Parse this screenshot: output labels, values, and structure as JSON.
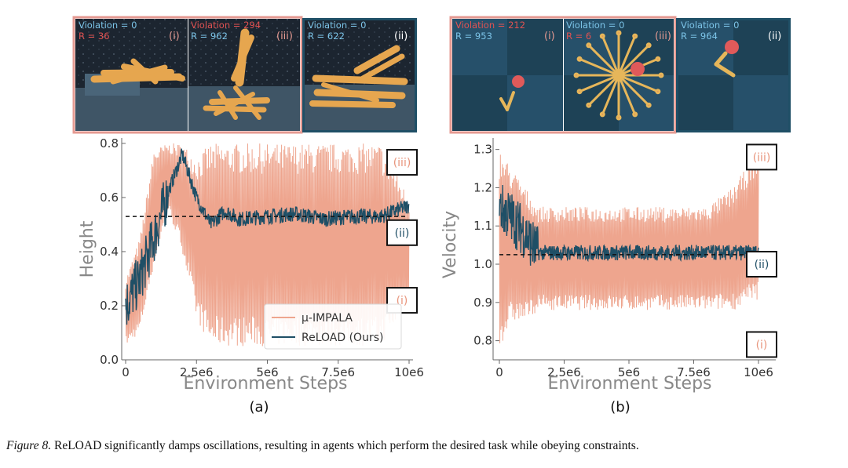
{
  "panels": [
    {
      "label": "(a)",
      "xlabel": "Environment Steps",
      "ylabel": "Height",
      "x_ticks": [
        "0",
        "2.5e6",
        "5e6",
        "7.5e6",
        "10e6"
      ],
      "y_ticks": [
        "0.0",
        "0.2",
        "0.4",
        "0.6",
        "0.8"
      ],
      "reference_value": 0.53,
      "markers": [
        {
          "label": "(iii)",
          "value": 0.73,
          "color": "#e8957c"
        },
        {
          "label": "(ii)",
          "value": 0.47,
          "color": "#1f4f66"
        },
        {
          "label": "(i)",
          "value": 0.22,
          "color": "#e8957c"
        }
      ],
      "thumbnails": [
        {
          "violation": "Violation = 0",
          "reward": "R = 36",
          "tag": "(i)",
          "border": "#e59a92"
        },
        {
          "violation": "Violation = 294",
          "reward": "R = 962",
          "tag": "(iii)",
          "border": "#e59a92"
        },
        {
          "violation": "Violation = 0",
          "reward": "R = 622",
          "tag": "(ii)",
          "border": "#1f4f66"
        }
      ]
    },
    {
      "label": "(b)",
      "xlabel": "Environment Steps",
      "ylabel": "Velocity",
      "x_ticks": [
        "0",
        "2.5e6",
        "5e6",
        "7.5e6",
        "10e6"
      ],
      "y_ticks": [
        "0.8",
        "0.9",
        "1.0",
        "1.1",
        "1.2",
        "1.3"
      ],
      "reference_value": 1.025,
      "markers": [
        {
          "label": "(iii)",
          "value": 1.28,
          "color": "#e8957c"
        },
        {
          "label": "(ii)",
          "value": 1.0,
          "color": "#1f4f66"
        },
        {
          "label": "(i)",
          "value": 0.79,
          "color": "#e8957c"
        }
      ],
      "thumbnails": [
        {
          "violation": "Violation = 212",
          "reward": "R = 953",
          "tag": "(i)",
          "border": "#e59a92"
        },
        {
          "violation": "Violation = 0",
          "reward": "R = 6",
          "tag": "(iii)",
          "border": "#e59a92"
        },
        {
          "violation": "Violation = 0",
          "reward": "R = 964",
          "tag": "(ii)",
          "border": "#1f4f66"
        }
      ]
    }
  ],
  "legend": {
    "series_1": "μ-IMPALA",
    "series_2": "ReLOAD (Ours)"
  },
  "colors": {
    "impala": "#eea58e",
    "reload": "#1f4f66",
    "reference_line": "#111111",
    "violation_text": "#e05252",
    "ok_text": "#7cc4e8"
  },
  "caption": {
    "lead": "Figure 8.",
    "text": " ReLOAD significantly damps oscillations, resulting in agents which perform the desired task while obeying constraints."
  },
  "chart_data": [
    {
      "type": "line",
      "title": "",
      "xlabel": "Environment Steps",
      "ylabel": "Height",
      "xlim": [
        0,
        10000000
      ],
      "ylim": [
        0.0,
        0.82
      ],
      "grid": false,
      "legend_position": "bottom-right",
      "reference_line": 0.53,
      "series": [
        {
          "name": "μ-IMPALA",
          "x": [
            0,
            500000,
            1000000,
            1500000,
            2000000,
            2500000,
            3000000,
            3500000,
            4000000,
            5000000,
            6000000,
            7000000,
            8000000,
            9000000,
            10000000
          ],
          "y_low": [
            0.05,
            0.1,
            0.35,
            0.55,
            0.4,
            0.15,
            0.05,
            0.05,
            0.05,
            0.05,
            0.05,
            0.05,
            0.05,
            0.05,
            0.2
          ],
          "y_high": [
            0.3,
            0.45,
            0.78,
            0.8,
            0.8,
            0.75,
            0.8,
            0.8,
            0.8,
            0.8,
            0.8,
            0.8,
            0.8,
            0.8,
            0.6
          ]
        },
        {
          "name": "ReLOAD (Ours)",
          "x": [
            0,
            500000,
            1000000,
            1500000,
            2000000,
            2500000,
            3000000,
            3500000,
            4000000,
            5000000,
            6000000,
            7000000,
            8000000,
            9000000,
            10000000
          ],
          "y": [
            0.2,
            0.3,
            0.45,
            0.62,
            0.76,
            0.6,
            0.5,
            0.55,
            0.52,
            0.53,
            0.54,
            0.52,
            0.53,
            0.53,
            0.57
          ]
        }
      ]
    },
    {
      "type": "line",
      "title": "",
      "xlabel": "Environment Steps",
      "ylabel": "Velocity",
      "xlim": [
        0,
        10000000
      ],
      "ylim": [
        0.75,
        1.33
      ],
      "grid": false,
      "legend_position": "none",
      "reference_line": 1.025,
      "series": [
        {
          "name": "μ-IMPALA",
          "x": [
            0,
            500000,
            1000000,
            1500000,
            2500000,
            4000000,
            5000000,
            6000000,
            7000000,
            8000000,
            9000000,
            10000000
          ],
          "y_low": [
            0.78,
            0.85,
            0.85,
            0.88,
            0.88,
            0.88,
            0.88,
            0.88,
            0.88,
            0.88,
            0.88,
            0.9
          ],
          "y_high": [
            1.3,
            1.25,
            1.2,
            1.15,
            1.15,
            1.15,
            1.15,
            1.15,
            1.15,
            1.15,
            1.2,
            1.3
          ]
        },
        {
          "name": "ReLOAD (Ours)",
          "x": [
            0,
            500000,
            1000000,
            1500000,
            2500000,
            4000000,
            5000000,
            6000000,
            7000000,
            8000000,
            9000000,
            10000000
          ],
          "y": [
            1.15,
            1.12,
            1.08,
            1.03,
            1.03,
            1.03,
            1.03,
            1.03,
            1.03,
            1.03,
            1.03,
            1.03
          ]
        }
      ]
    }
  ]
}
